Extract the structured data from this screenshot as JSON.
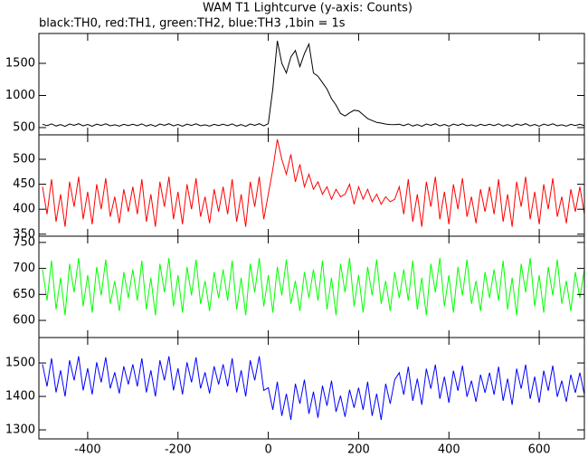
{
  "chart_data": {
    "type": "line",
    "title": "WAM T1 Lightcurve (y-axis: Counts)",
    "subtitle": "black:TH0, red:TH1, green:TH2, blue:TH3 ,1bin = 1s",
    "x": [
      -500,
      -490,
      -480,
      -470,
      -460,
      -450,
      -440,
      -430,
      -420,
      -410,
      -400,
      -390,
      -380,
      -370,
      -360,
      -350,
      -340,
      -330,
      -320,
      -310,
      -300,
      -290,
      -280,
      -270,
      -260,
      -250,
      -240,
      -230,
      -220,
      -210,
      -200,
      -190,
      -180,
      -170,
      -160,
      -150,
      -140,
      -130,
      -120,
      -110,
      -100,
      -90,
      -80,
      -70,
      -60,
      -50,
      -40,
      -30,
      -20,
      -10,
      0,
      10,
      20,
      30,
      40,
      50,
      60,
      70,
      80,
      90,
      100,
      110,
      120,
      130,
      140,
      150,
      160,
      170,
      180,
      190,
      200,
      210,
      220,
      230,
      240,
      250,
      260,
      270,
      280,
      290,
      300,
      310,
      320,
      330,
      340,
      350,
      360,
      370,
      380,
      390,
      400,
      410,
      420,
      430,
      440,
      450,
      460,
      470,
      480,
      490,
      500,
      510,
      520,
      530,
      540,
      550,
      560,
      570,
      580,
      590,
      600,
      610,
      620,
      630,
      640,
      650,
      660,
      670,
      680,
      690,
      700
    ],
    "xlim": [
      -508,
      700
    ],
    "xticks": [
      -400,
      -200,
      0,
      200,
      400,
      600
    ],
    "series": [
      {
        "color": "#000000",
        "ylim": [
          387,
          1965
        ],
        "yticks": [
          500,
          1000,
          1500
        ],
        "values": [
          552,
          530,
          558,
          524,
          546,
          520,
          556,
          536,
          560,
          526,
          548,
          522,
          554,
          534,
          559,
          528,
          544,
          523,
          550,
          532,
          552,
          530,
          558,
          524,
          546,
          520,
          556,
          536,
          560,
          526,
          548,
          522,
          554,
          534,
          559,
          528,
          544,
          523,
          550,
          532,
          552,
          530,
          558,
          524,
          546,
          520,
          556,
          536,
          560,
          526,
          560,
          1100,
          1850,
          1500,
          1350,
          1600,
          1700,
          1450,
          1650,
          1800,
          1350,
          1300,
          1200,
          1100,
          950,
          850,
          720,
          680,
          730,
          770,
          760,
          700,
          640,
          610,
          580,
          570,
          555,
          548,
          545,
          552,
          530,
          558,
          524,
          546,
          520,
          556,
          536,
          560,
          526,
          548,
          522,
          554,
          534,
          559,
          528,
          544,
          523,
          550,
          532,
          552,
          530,
          558,
          524,
          546,
          520,
          556,
          536,
          560,
          526,
          548,
          522,
          554,
          534,
          559,
          528,
          544,
          523,
          550,
          532,
          552,
          530
        ]
      },
      {
        "color": "#ff0000",
        "ylim": [
          346,
          549
        ],
        "yticks": [
          350,
          400,
          450,
          500
        ],
        "values": [
          445,
          390,
          460,
          375,
          430,
          365,
          455,
          405,
          465,
          380,
          435,
          370,
          450,
          400,
          462,
          385,
          425,
          372,
          440,
          395,
          445,
          390,
          460,
          375,
          430,
          365,
          455,
          405,
          465,
          380,
          435,
          370,
          450,
          400,
          462,
          385,
          425,
          372,
          440,
          395,
          445,
          390,
          460,
          375,
          430,
          365,
          455,
          405,
          465,
          380,
          430,
          480,
          540,
          500,
          470,
          510,
          455,
          490,
          445,
          470,
          440,
          455,
          430,
          445,
          420,
          440,
          425,
          430,
          450,
          410,
          445,
          420,
          440,
          415,
          430,
          410,
          425,
          415,
          420,
          445,
          390,
          460,
          375,
          430,
          365,
          455,
          405,
          465,
          380,
          435,
          370,
          450,
          400,
          462,
          385,
          425,
          372,
          440,
          395,
          445,
          390,
          460,
          375,
          430,
          365,
          455,
          405,
          465,
          380,
          435,
          370,
          450,
          400,
          462,
          385,
          425,
          372,
          440,
          395,
          445,
          390
        ]
      },
      {
        "color": "#00ff00",
        "ylim": [
          567,
          762
        ],
        "yticks": [
          600,
          650,
          700,
          750
        ],
        "values": [
          698,
          638,
          715,
          621,
          682,
          610,
          709,
          654,
          720,
          627,
          687,
          615,
          703,
          648,
          717,
          632,
          676,
          618,
          693,
          643,
          698,
          638,
          715,
          621,
          682,
          610,
          709,
          654,
          720,
          627,
          687,
          615,
          703,
          648,
          717,
          632,
          676,
          618,
          693,
          643,
          698,
          638,
          715,
          621,
          682,
          610,
          709,
          654,
          720,
          627,
          687,
          615,
          703,
          648,
          717,
          632,
          676,
          618,
          693,
          643,
          698,
          638,
          715,
          621,
          682,
          610,
          709,
          654,
          720,
          627,
          687,
          615,
          703,
          648,
          717,
          632,
          676,
          618,
          693,
          643,
          698,
          638,
          715,
          621,
          682,
          610,
          709,
          654,
          720,
          627,
          687,
          615,
          703,
          648,
          717,
          632,
          676,
          618,
          693,
          643,
          698,
          638,
          715,
          621,
          682,
          610,
          709,
          654,
          720,
          627,
          687,
          615,
          703,
          648,
          717,
          632,
          676,
          618,
          693,
          643,
          698
        ]
      },
      {
        "color": "#0000ff",
        "ylim": [
          1273,
          1576
        ],
        "yticks": [
          1300,
          1400,
          1500
        ],
        "values": [
          1496,
          1430,
          1514,
          1412,
          1478,
          1400,
          1508,
          1448,
          1520,
          1418,
          1484,
          1406,
          1502,
          1442,
          1517,
          1424,
          1472,
          1409,
          1490,
          1436,
          1496,
          1430,
          1514,
          1412,
          1478,
          1400,
          1508,
          1448,
          1520,
          1418,
          1484,
          1406,
          1502,
          1442,
          1517,
          1424,
          1472,
          1409,
          1490,
          1436,
          1496,
          1430,
          1514,
          1412,
          1478,
          1400,
          1508,
          1448,
          1520,
          1418,
          1426,
          1360,
          1444,
          1342,
          1408,
          1330,
          1438,
          1378,
          1450,
          1348,
          1414,
          1336,
          1432,
          1372,
          1447,
          1354,
          1402,
          1339,
          1420,
          1366,
          1426,
          1360,
          1444,
          1342,
          1408,
          1330,
          1438,
          1378,
          1450,
          1471,
          1405,
          1489,
          1387,
          1453,
          1375,
          1483,
          1423,
          1495,
          1393,
          1459,
          1381,
          1477,
          1417,
          1492,
          1399,
          1447,
          1384,
          1465,
          1411,
          1471,
          1405,
          1489,
          1387,
          1453,
          1375,
          1483,
          1423,
          1495,
          1393,
          1459,
          1381,
          1477,
          1417,
          1492,
          1399,
          1447,
          1384,
          1465,
          1411,
          1471,
          1405
        ]
      }
    ]
  }
}
